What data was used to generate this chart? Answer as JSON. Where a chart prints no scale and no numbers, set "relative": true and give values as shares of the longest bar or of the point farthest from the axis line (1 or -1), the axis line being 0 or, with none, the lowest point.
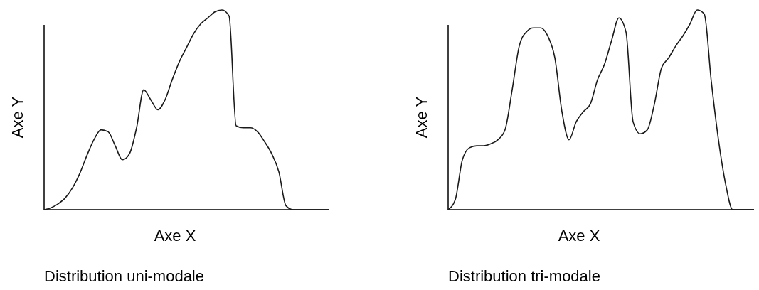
{
  "chart_data": [
    {
      "type": "line",
      "title": "Distribution uni-modale",
      "xlabel": "Axe X",
      "ylabel": "Axe Y",
      "relative": true,
      "color": "#1a1a1a",
      "categories": [
        null,
        null,
        null,
        null,
        null,
        null,
        null,
        null,
        null,
        null,
        null,
        null,
        null,
        null,
        null,
        null,
        null,
        null,
        null,
        null,
        null,
        null,
        null,
        null,
        null,
        null,
        null,
        null,
        null,
        null,
        null,
        null,
        null,
        null,
        null,
        null,
        null,
        null,
        null,
        null,
        null
      ],
      "values": [
        0,
        0.01,
        0.03,
        0.06,
        0.11,
        0.18,
        0.27,
        0.35,
        0.4,
        0.39,
        0.32,
        0.25,
        0.28,
        0.41,
        0.6,
        0.55,
        0.5,
        0.55,
        0.65,
        0.74,
        0.81,
        0.88,
        0.93,
        0.96,
        0.99,
        1,
        0.97,
        0.42,
        0.41,
        0.41,
        0.39,
        0.34,
        0.28,
        0.19,
        0.02,
        0,
        0,
        0,
        0,
        0,
        0
      ]
    },
    {
      "type": "line",
      "title": "Distribution tri-modale",
      "xlabel": "Axe X",
      "ylabel": "Axe Y",
      "relative": true,
      "color": "#1a1a1a",
      "categories": [
        null,
        null,
        null,
        null,
        null,
        null,
        null,
        null,
        null,
        null,
        null,
        null,
        null,
        null,
        null,
        null,
        null,
        null,
        null,
        null,
        null,
        null,
        null,
        null,
        null,
        null,
        null,
        null,
        null,
        null,
        null,
        null,
        null,
        null,
        null,
        null,
        null,
        null,
        null,
        null,
        null,
        null,
        null,
        null
      ],
      "values": [
        0,
        0.05,
        0.25,
        0.31,
        0.32,
        0.32,
        0.33,
        0.35,
        0.4,
        0.6,
        0.82,
        0.89,
        0.91,
        0.91,
        0.87,
        0.76,
        0.49,
        0.35,
        0.44,
        0.49,
        0.53,
        0.65,
        0.73,
        0.85,
        0.96,
        0.89,
        0.44,
        0.38,
        0.4,
        0.53,
        0.71,
        0.76,
        0.82,
        0.87,
        0.93,
        1,
        0.98,
        0.64,
        0.35,
        0.13,
        0,
        0,
        0,
        0
      ]
    }
  ]
}
